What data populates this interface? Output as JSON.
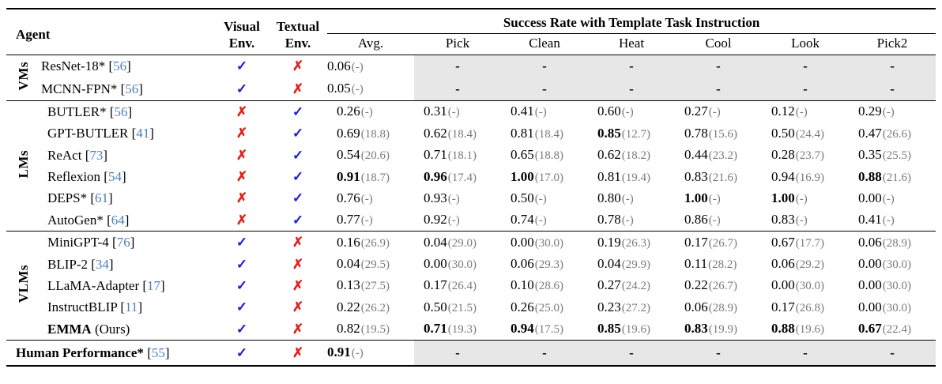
{
  "table": {
    "colors": {
      "check": "#1b1bd6",
      "cross": "#e0211d",
      "citation": "#4d7fbe",
      "paren": "#7a7a7a",
      "shaded_cell": "#e7e7e7"
    },
    "dash_symbol": "-",
    "citation_format": {
      "open": "[",
      "close": "]"
    },
    "paren_format": {
      "open": "(",
      "close": ")"
    },
    "header": {
      "agent": "Agent",
      "visual_env": {
        "line1": "Visual",
        "line2": "Env."
      },
      "textual_env": {
        "line1": "Textual",
        "line2": "Env."
      },
      "span_title": "Success Rate with Template Task Instruction",
      "subcolumns": [
        "Avg.",
        "Pick",
        "Clean",
        "Heat",
        "Cool",
        "Look",
        "Pick2"
      ]
    },
    "icons": {
      "check": "✓",
      "cross": "✗"
    },
    "groups": [
      {
        "label": "VMs",
        "row_class": "vm-row",
        "rows": [
          {
            "agent": "ResNet-18*",
            "agent_bold": false,
            "suffix": "",
            "ref": "56",
            "visual": true,
            "textual": false,
            "cells": [
              {
                "v": "0.06",
                "p": "-",
                "bold": false
              },
              {
                "dash": true
              },
              {
                "dash": true
              },
              {
                "dash": true
              },
              {
                "dash": true
              },
              {
                "dash": true
              },
              {
                "dash": true
              }
            ]
          },
          {
            "agent": "MCNN-FPN*",
            "agent_bold": false,
            "suffix": "",
            "ref": "56",
            "visual": true,
            "textual": false,
            "cells": [
              {
                "v": "0.05",
                "p": "-",
                "bold": false
              },
              {
                "dash": true
              },
              {
                "dash": true
              },
              {
                "dash": true
              },
              {
                "dash": true
              },
              {
                "dash": true
              },
              {
                "dash": true
              }
            ]
          }
        ]
      },
      {
        "label": "LMs",
        "row_class": "",
        "rows": [
          {
            "agent": "BUTLER*",
            "agent_bold": false,
            "suffix": "",
            "ref": "56",
            "visual": false,
            "textual": true,
            "cells": [
              {
                "v": "0.26",
                "p": "-",
                "bold": false
              },
              {
                "v": "0.31",
                "p": "-",
                "bold": false
              },
              {
                "v": "0.41",
                "p": "-",
                "bold": false
              },
              {
                "v": "0.60",
                "p": "-",
                "bold": false
              },
              {
                "v": "0.27",
                "p": "-",
                "bold": false
              },
              {
                "v": "0.12",
                "p": "-",
                "bold": false
              },
              {
                "v": "0.29",
                "p": "-",
                "bold": false
              }
            ]
          },
          {
            "agent": "GPT-BUTLER",
            "agent_bold": false,
            "suffix": "",
            "ref": "41",
            "visual": false,
            "textual": true,
            "cells": [
              {
                "v": "0.69",
                "p": "18.8",
                "bold": false
              },
              {
                "v": "0.62",
                "p": "18.4",
                "bold": false
              },
              {
                "v": "0.81",
                "p": "18.4",
                "bold": false
              },
              {
                "v": "0.85",
                "p": "12.7",
                "bold": true
              },
              {
                "v": "0.78",
                "p": "15.6",
                "bold": false
              },
              {
                "v": "0.50",
                "p": "24.4",
                "bold": false
              },
              {
                "v": "0.47",
                "p": "26.6",
                "bold": false
              }
            ]
          },
          {
            "agent": "ReAct",
            "agent_bold": false,
            "suffix": "",
            "ref": "73",
            "visual": false,
            "textual": true,
            "cells": [
              {
                "v": "0.54",
                "p": "20.6",
                "bold": false
              },
              {
                "v": "0.71",
                "p": "18.1",
                "bold": false
              },
              {
                "v": "0.65",
                "p": "18.8",
                "bold": false
              },
              {
                "v": "0.62",
                "p": "18.2",
                "bold": false
              },
              {
                "v": "0.44",
                "p": "23.2",
                "bold": false
              },
              {
                "v": "0.28",
                "p": "23.7",
                "bold": false
              },
              {
                "v": "0.35",
                "p": "25.5",
                "bold": false
              }
            ]
          },
          {
            "agent": "Reflexion",
            "agent_bold": false,
            "suffix": "",
            "ref": "54",
            "visual": false,
            "textual": true,
            "cells": [
              {
                "v": "0.91",
                "p": "18.7",
                "bold": true
              },
              {
                "v": "0.96",
                "p": "17.4",
                "bold": true
              },
              {
                "v": "1.00",
                "p": "17.0",
                "bold": true
              },
              {
                "v": "0.81",
                "p": "19.4",
                "bold": false
              },
              {
                "v": "0.83",
                "p": "21.6",
                "bold": false
              },
              {
                "v": "0.94",
                "p": "16.9",
                "bold": false
              },
              {
                "v": "0.88",
                "p": "21.6",
                "bold": true
              }
            ]
          },
          {
            "agent": "DEPS*",
            "agent_bold": false,
            "suffix": "",
            "ref": "61",
            "visual": false,
            "textual": true,
            "cells": [
              {
                "v": "0.76",
                "p": "-",
                "bold": false
              },
              {
                "v": "0.93",
                "p": "-",
                "bold": false
              },
              {
                "v": "0.50",
                "p": "-",
                "bold": false
              },
              {
                "v": "0.80",
                "p": "-",
                "bold": false
              },
              {
                "v": "1.00",
                "p": "-",
                "bold": true
              },
              {
                "v": "1.00",
                "p": "-",
                "bold": true
              },
              {
                "v": "0.00",
                "p": "-",
                "bold": false
              }
            ]
          },
          {
            "agent": "AutoGen*",
            "agent_bold": false,
            "suffix": "",
            "ref": "64",
            "visual": false,
            "textual": true,
            "cells": [
              {
                "v": "0.77",
                "p": "-",
                "bold": false
              },
              {
                "v": "0.92",
                "p": "-",
                "bold": false
              },
              {
                "v": "0.74",
                "p": "-",
                "bold": false
              },
              {
                "v": "0.78",
                "p": "-",
                "bold": false
              },
              {
                "v": "0.86",
                "p": "-",
                "bold": false
              },
              {
                "v": "0.83",
                "p": "-",
                "bold": false
              },
              {
                "v": "0.41",
                "p": "-",
                "bold": false
              }
            ]
          }
        ]
      },
      {
        "label": "VLMs",
        "row_class": "",
        "rows": [
          {
            "agent": "MiniGPT-4",
            "agent_bold": false,
            "suffix": "",
            "ref": "76",
            "visual": true,
            "textual": false,
            "cells": [
              {
                "v": "0.16",
                "p": "26.9",
                "bold": false
              },
              {
                "v": "0.04",
                "p": "29.0",
                "bold": false
              },
              {
                "v": "0.00",
                "p": "30.0",
                "bold": false
              },
              {
                "v": "0.19",
                "p": "26.3",
                "bold": false
              },
              {
                "v": "0.17",
                "p": "26.7",
                "bold": false
              },
              {
                "v": "0.67",
                "p": "17.7",
                "bold": false
              },
              {
                "v": "0.06",
                "p": "28.9",
                "bold": false
              }
            ]
          },
          {
            "agent": "BLIP-2",
            "agent_bold": false,
            "suffix": "",
            "ref": "34",
            "visual": true,
            "textual": false,
            "cells": [
              {
                "v": "0.04",
                "p": "29.5",
                "bold": false
              },
              {
                "v": "0.00",
                "p": "30.0",
                "bold": false
              },
              {
                "v": "0.06",
                "p": "29.3",
                "bold": false
              },
              {
                "v": "0.04",
                "p": "29.9",
                "bold": false
              },
              {
                "v": "0.11",
                "p": "28.2",
                "bold": false
              },
              {
                "v": "0.06",
                "p": "29.2",
                "bold": false
              },
              {
                "v": "0.00",
                "p": "30.0",
                "bold": false
              }
            ]
          },
          {
            "agent": "LLaMA-Adapter",
            "agent_bold": false,
            "suffix": "",
            "ref": "17",
            "visual": true,
            "textual": false,
            "cells": [
              {
                "v": "0.13",
                "p": "27.5",
                "bold": false
              },
              {
                "v": "0.17",
                "p": "26.4",
                "bold": false
              },
              {
                "v": "0.10",
                "p": "28.6",
                "bold": false
              },
              {
                "v": "0.27",
                "p": "24.2",
                "bold": false
              },
              {
                "v": "0.22",
                "p": "26.7",
                "bold": false
              },
              {
                "v": "0.00",
                "p": "30.0",
                "bold": false
              },
              {
                "v": "0.00",
                "p": "30.0",
                "bold": false
              }
            ]
          },
          {
            "agent": "InstructBLIP",
            "agent_bold": false,
            "suffix": "",
            "ref": "11",
            "visual": true,
            "textual": false,
            "cells": [
              {
                "v": "0.22",
                "p": "26.2",
                "bold": false
              },
              {
                "v": "0.50",
                "p": "21.5",
                "bold": false
              },
              {
                "v": "0.26",
                "p": "25.0",
                "bold": false
              },
              {
                "v": "0.23",
                "p": "27.2",
                "bold": false
              },
              {
                "v": "0.06",
                "p": "28.9",
                "bold": false
              },
              {
                "v": "0.17",
                "p": "26.8",
                "bold": false
              },
              {
                "v": "0.00",
                "p": "30.0",
                "bold": false
              }
            ]
          },
          {
            "agent": "EMMA",
            "agent_bold": true,
            "suffix": " (Ours)",
            "ref": "",
            "visual": true,
            "textual": false,
            "cells": [
              {
                "v": "0.82",
                "p": "19.5",
                "bold": false
              },
              {
                "v": "0.71",
                "p": "19.3",
                "bold": true
              },
              {
                "v": "0.94",
                "p": "17.5",
                "bold": true
              },
              {
                "v": "0.85",
                "p": "19.6",
                "bold": true
              },
              {
                "v": "0.83",
                "p": "19.9",
                "bold": true
              },
              {
                "v": "0.88",
                "p": "19.6",
                "bold": true
              },
              {
                "v": "0.67",
                "p": "22.4",
                "bold": true
              }
            ]
          }
        ]
      },
      {
        "label": "",
        "row_class": "human-row",
        "rows": [
          {
            "agent": "Human Performance*",
            "agent_bold": true,
            "suffix": "",
            "ref": "55",
            "visual": true,
            "textual": false,
            "cells": [
              {
                "v": "0.91",
                "p": "-",
                "bold": true
              },
              {
                "dash": true
              },
              {
                "dash": true
              },
              {
                "dash": true
              },
              {
                "dash": true
              },
              {
                "dash": true
              },
              {
                "dash": true
              }
            ]
          }
        ]
      }
    ]
  }
}
